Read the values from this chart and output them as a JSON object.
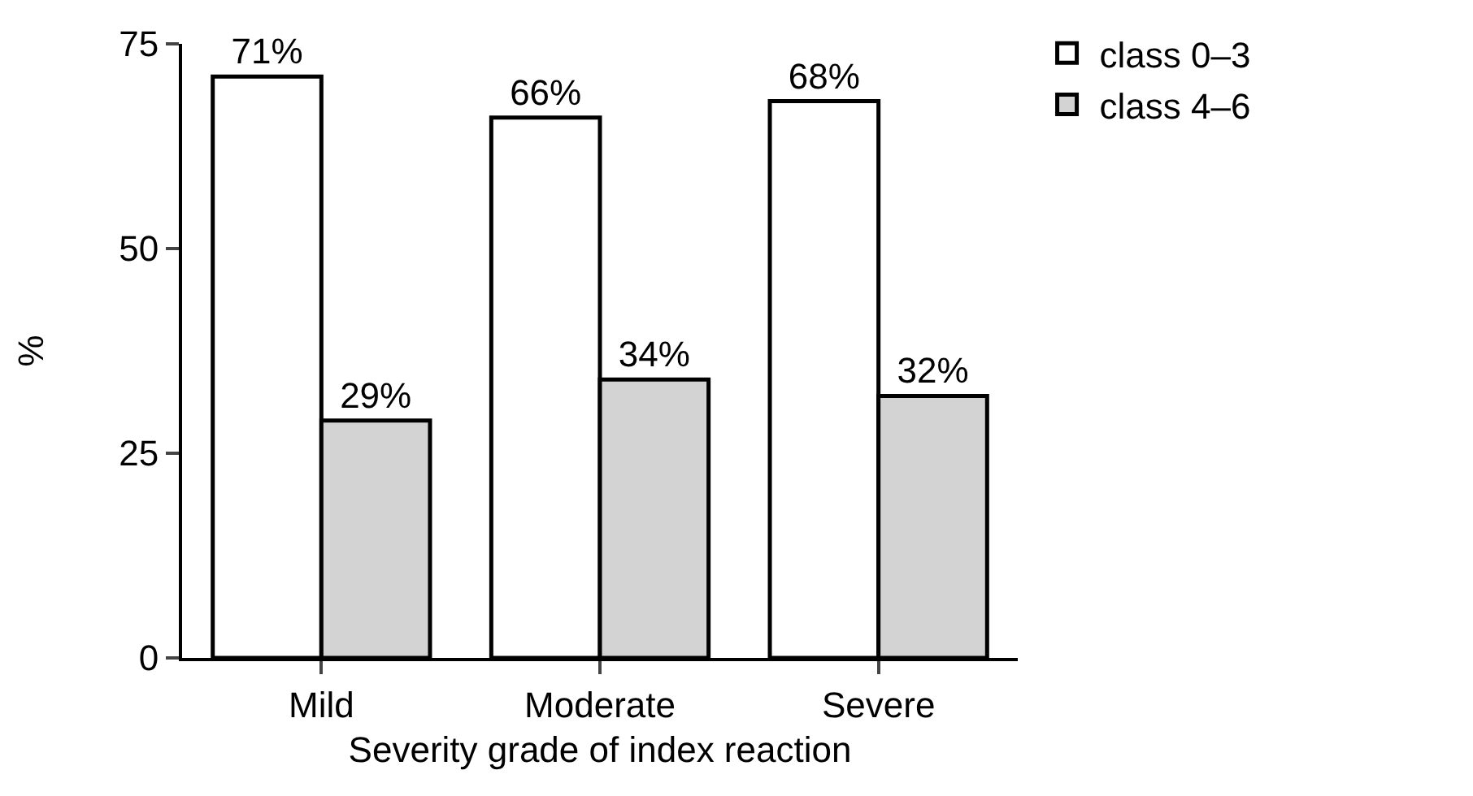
{
  "chart_data": {
    "type": "bar",
    "xlabel": "Severity grade of index reaction",
    "ylabel": "%",
    "categories": [
      "Mild",
      "Moderate",
      "Severe"
    ],
    "series": [
      {
        "name": "class 0–3",
        "color": "#ffffff",
        "values": [
          71,
          66,
          68
        ],
        "value_labels": [
          "71%",
          "66%",
          "68%"
        ]
      },
      {
        "name": "class 4–6",
        "color": "#d3d3d3",
        "values": [
          29,
          34,
          32
        ],
        "value_labels": [
          "29%",
          "34%",
          "32%"
        ]
      }
    ],
    "ylim": [
      0,
      75
    ],
    "yticks": [
      0,
      25,
      50,
      75
    ],
    "grid": false,
    "legend": "top right"
  }
}
